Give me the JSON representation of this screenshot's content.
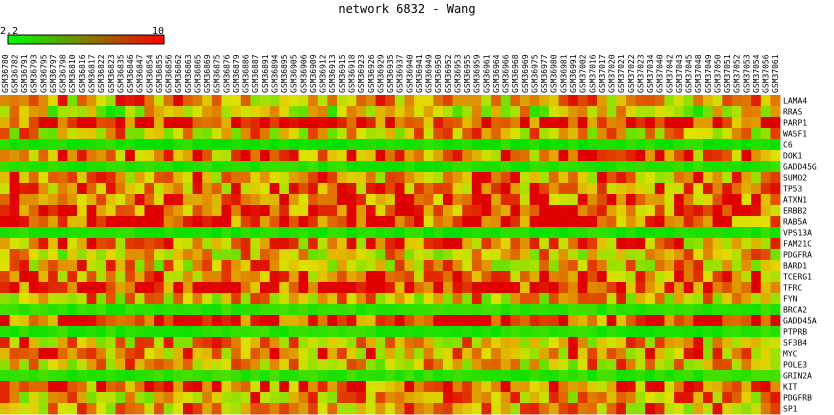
{
  "chart_data": {
    "type": "heatmap",
    "title": "network 6832 - Wang",
    "colorbar": {
      "min_label": "2.2",
      "max_label": "10",
      "min": 2.2,
      "max": 10,
      "low_color": "#00ff00",
      "high_color": "#ff0000"
    },
    "columns": [
      "GSM36780",
      "GSM36782",
      "GSM36791",
      "GSM36793",
      "GSM36795",
      "GSM36797",
      "GSM36798",
      "GSM36810",
      "GSM36816",
      "GSM36817",
      "GSM36822",
      "GSM36823",
      "GSM36835",
      "GSM36846",
      "GSM36847",
      "GSM36854",
      "GSM36855",
      "GSM36856",
      "GSM36862",
      "GSM36863",
      "GSM36865",
      "GSM36869",
      "GSM36875",
      "GSM36876",
      "GSM36879",
      "GSM36886",
      "GSM36887",
      "GSM36891",
      "GSM36894",
      "GSM36895",
      "GSM36905",
      "GSM36906",
      "GSM36909",
      "GSM36912",
      "GSM36913",
      "GSM36915",
      "GSM36918",
      "GSM36923",
      "GSM36926",
      "GSM36929",
      "GSM36935",
      "GSM36937",
      "GSM36940",
      "GSM36941",
      "GSM36949",
      "GSM36950",
      "GSM36952",
      "GSM36953",
      "GSM36955",
      "GSM36959",
      "GSM36961",
      "GSM36964",
      "GSM36966",
      "GSM36968",
      "GSM36969",
      "GSM36975",
      "GSM36977",
      "GSM36980",
      "GSM36981",
      "GSM36991",
      "GSM37002",
      "GSM37016",
      "GSM37017",
      "GSM37020",
      "GSM37021",
      "GSM37022",
      "GSM37023",
      "GSM37034",
      "GSM37040",
      "GSM37042",
      "GSM37043",
      "GSM37045",
      "GSM37048",
      "GSM37049",
      "GSM37050",
      "GSM37051",
      "GSM37052",
      "GSM37053",
      "GSM37054",
      "GSM37056",
      "GSM37061"
    ],
    "rows": [
      "LAMA4",
      "RRAS",
      "PARP1",
      "WASF1",
      "C6",
      "DOK1",
      "GADD45G",
      "SUMO2",
      "TP53",
      "ATXN1",
      "ERBB2",
      "RAB5A",
      "VPS13A",
      "FAM21C",
      "PDGFRA",
      "BARD1",
      "TCERG1",
      "TFRC",
      "FYN",
      "BRCA2",
      "GADD45A",
      "PTPRB",
      "SF3B4",
      "MYC",
      "POLE3",
      "GRIN2A",
      "KIT",
      "PDGFRB",
      "SP1"
    ],
    "row_levels": [
      0.62,
      0.42,
      0.9,
      0.58,
      0.05,
      0.75,
      0.08,
      0.7,
      0.72,
      0.8,
      0.82,
      0.85,
      0.06,
      0.66,
      0.55,
      0.6,
      0.74,
      0.92,
      0.58,
      0.1,
      0.9,
      0.08,
      0.62,
      0.68,
      0.57,
      0.1,
      0.78,
      0.62,
      0.64
    ]
  }
}
